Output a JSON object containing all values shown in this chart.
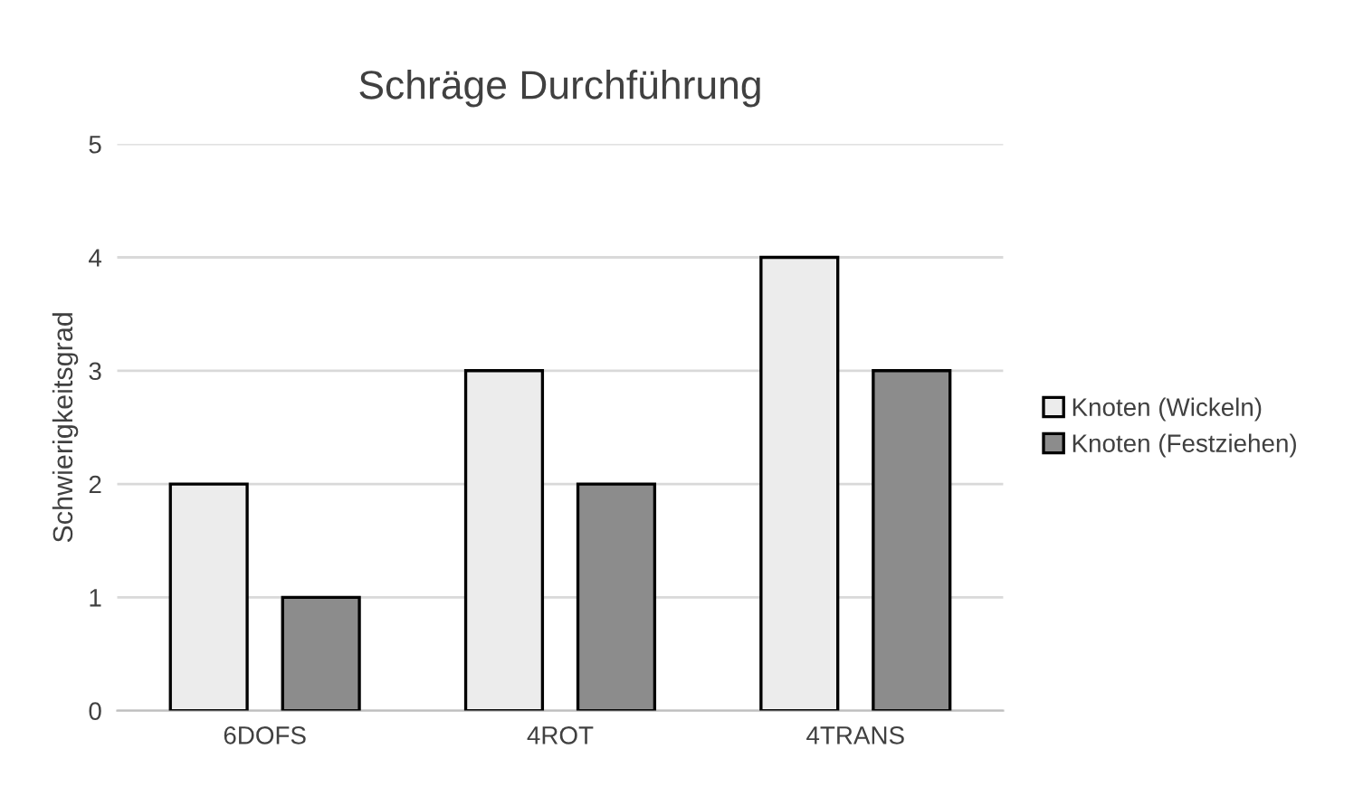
{
  "chart_data": {
    "type": "bar",
    "title": "Schräge Durchführung",
    "ylabel": "Schwierigkeitsgrad",
    "categories": [
      "6DOFS",
      "4ROT",
      "4TRANS"
    ],
    "series": [
      {
        "name": "Knoten (Wickeln)",
        "color": "#ececec",
        "values": [
          2,
          3,
          4
        ]
      },
      {
        "name": "Knoten (Festziehen)",
        "color": "#8c8c8c",
        "values": [
          1,
          2,
          3
        ]
      }
    ],
    "ylim": [
      0,
      5
    ],
    "yticks": [
      0,
      1,
      2,
      3,
      4,
      5
    ],
    "grid": "y",
    "legend": "right"
  }
}
